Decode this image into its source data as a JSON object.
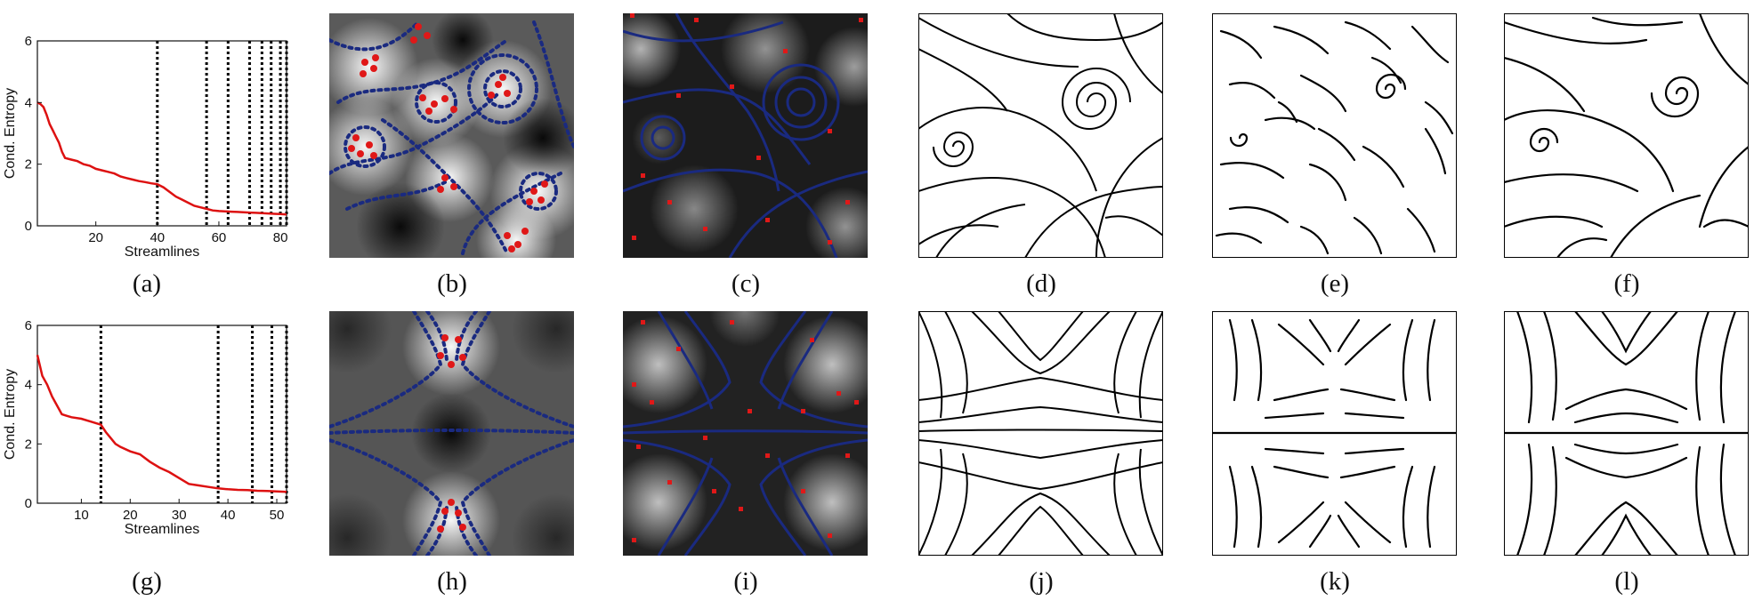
{
  "chart_data": [
    {
      "type": "line",
      "panel": "(a)",
      "ylabel": "Cond. Entropy",
      "xlabel": "Streamlines",
      "xlim": [
        1,
        82
      ],
      "ylim": [
        0,
        6
      ],
      "xticks": [
        20,
        40,
        60,
        80
      ],
      "yticks": [
        0,
        2,
        4,
        6
      ],
      "series": [
        {
          "color": "#dd1111",
          "x": [
            1,
            2,
            3,
            4,
            5,
            6,
            7,
            8,
            9,
            10,
            12,
            14,
            16,
            18,
            20,
            22,
            24,
            26,
            28,
            30,
            32,
            34,
            36,
            38,
            40,
            42,
            44,
            46,
            48,
            50,
            52,
            54,
            56,
            58,
            60,
            62,
            64,
            66,
            68,
            70,
            72,
            74,
            76,
            78,
            80,
            82
          ],
          "y": [
            4.0,
            3.95,
            3.85,
            3.6,
            3.3,
            3.1,
            2.9,
            2.7,
            2.4,
            2.2,
            2.15,
            2.1,
            2.0,
            1.95,
            1.85,
            1.8,
            1.75,
            1.7,
            1.6,
            1.55,
            1.5,
            1.45,
            1.42,
            1.38,
            1.35,
            1.25,
            1.1,
            0.95,
            0.85,
            0.75,
            0.65,
            0.6,
            0.55,
            0.5,
            0.48,
            0.47,
            0.46,
            0.45,
            0.44,
            0.43,
            0.42,
            0.41,
            0.4,
            0.39,
            0.38,
            0.37
          ]
        }
      ],
      "vlines": [
        40,
        56,
        63,
        70,
        74,
        77,
        80,
        82
      ]
    },
    {
      "type": "line",
      "panel": "(g)",
      "ylabel": "Cond. Entropy",
      "xlabel": "Streamlines",
      "xlim": [
        1,
        52
      ],
      "ylim": [
        0,
        6
      ],
      "xticks": [
        10,
        20,
        30,
        40,
        50
      ],
      "yticks": [
        0,
        2,
        4,
        6
      ],
      "series": [
        {
          "color": "#dd1111",
          "x": [
            1,
            2,
            3,
            4,
            5,
            6,
            7,
            8,
            10,
            12,
            14,
            15,
            16,
            17,
            18,
            20,
            22,
            24,
            26,
            28,
            30,
            32,
            34,
            36,
            38,
            40,
            42,
            44,
            46,
            48,
            50,
            52
          ],
          "y": [
            5.0,
            4.3,
            4.0,
            3.6,
            3.3,
            3.0,
            2.95,
            2.9,
            2.85,
            2.75,
            2.65,
            2.4,
            2.2,
            2.0,
            1.9,
            1.75,
            1.65,
            1.4,
            1.2,
            1.05,
            0.85,
            0.65,
            0.6,
            0.55,
            0.5,
            0.47,
            0.45,
            0.44,
            0.42,
            0.41,
            0.4,
            0.38
          ]
        }
      ],
      "vlines": [
        14,
        38,
        45,
        49,
        52
      ]
    }
  ],
  "captions": {
    "a": "(a)",
    "b": "(b)",
    "c": "(c)",
    "d": "(d)",
    "e": "(e)",
    "f": "(f)",
    "g": "(g)",
    "h": "(h)",
    "i": "(i)",
    "j": "(j)",
    "k": "(k)",
    "l": "(l)"
  },
  "colors": {
    "curve": "#dd1111",
    "streamline_dashed": "#1a2a80",
    "seed_points": "#e01818",
    "streamline_black": "#000000",
    "vline": "#000000"
  }
}
